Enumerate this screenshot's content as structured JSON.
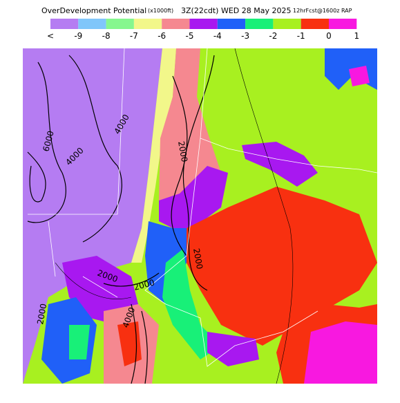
{
  "header": {
    "title": "OverDevelopment Potential",
    "units": "(x1000ft)",
    "valid": "3Z(22cdt) WED 28 May 2025",
    "forecast": "12hrFcst@1600z RAP"
  },
  "legend": {
    "labels": [
      "<",
      "-9",
      "-8",
      "-7",
      "-6",
      "-5",
      "-4",
      "-3",
      "-2",
      "-1",
      "0",
      "1"
    ],
    "colors": [
      "#b57cf2",
      "#80c6fa",
      "#86f78e",
      "#f2f78a",
      "#f58890",
      "#a818f0",
      "#2060f8",
      "#18f078",
      "#a8f020",
      "#f83010",
      "#f818e0"
    ]
  },
  "map": {
    "contour_labels": [
      "6000",
      "4000",
      "4000",
      "2000",
      "2000",
      "2000",
      "2000",
      "2000",
      "4000"
    ]
  }
}
